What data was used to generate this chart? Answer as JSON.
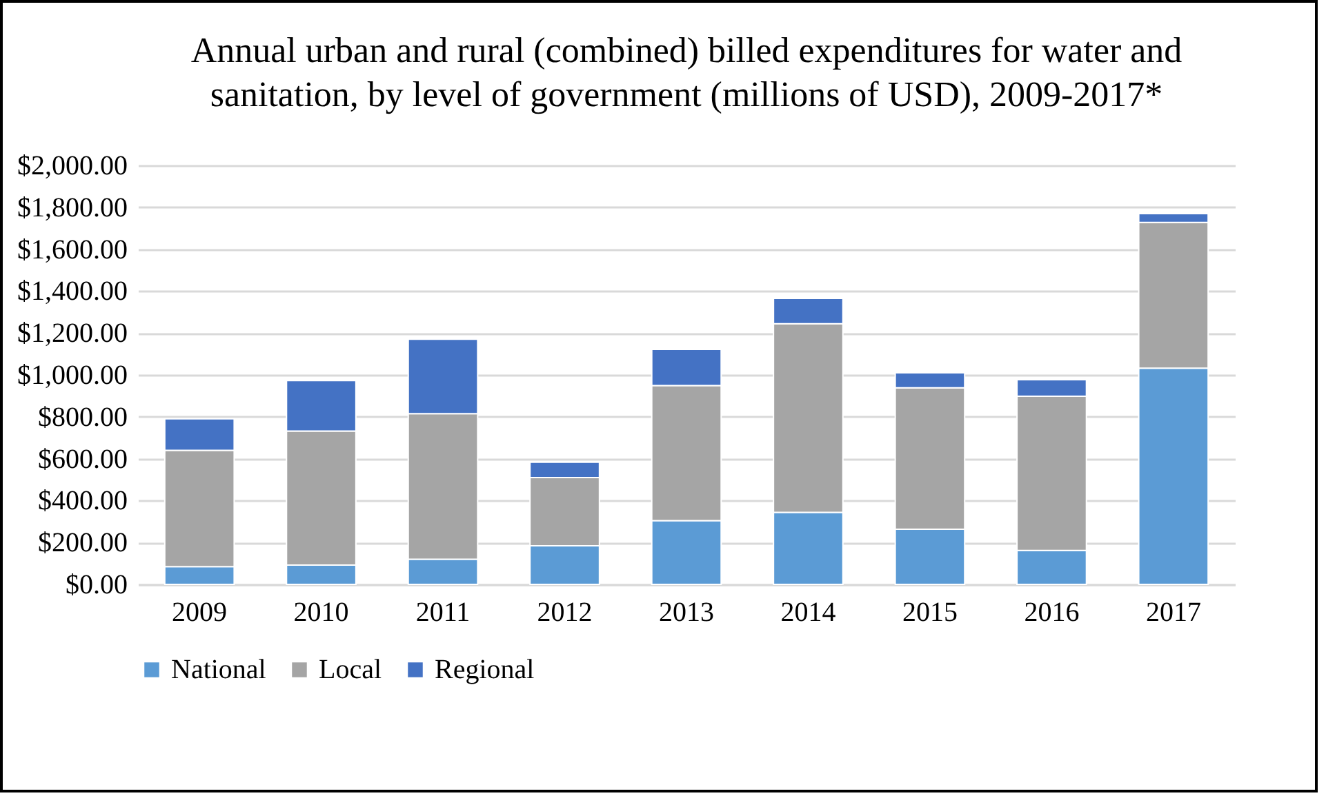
{
  "chart_data": {
    "type": "bar",
    "stacked": true,
    "title": "Annual urban and rural (combined) billed expenditures for water and sanitation, by level of government (millions of USD), 2009-2017*",
    "categories": [
      "2009",
      "2010",
      "2011",
      "2012",
      "2013",
      "2014",
      "2015",
      "2016",
      "2017"
    ],
    "series": [
      {
        "name": "National",
        "color": "#5b9bd5",
        "values": [
          85,
          92,
          120,
          184,
          304,
          344,
          263,
          162,
          1032
        ]
      },
      {
        "name": "Local",
        "color": "#a5a5a5",
        "values": [
          555,
          640,
          695,
          326,
          645,
          900,
          675,
          736,
          696
        ]
      },
      {
        "name": "Regional",
        "color": "#4472c4",
        "values": [
          150,
          241,
          355,
          73,
          173,
          121,
          72,
          79,
          42
        ]
      }
    ],
    "ylim": [
      0,
      2000
    ],
    "yticks": [
      {
        "value": 0,
        "label": "$0.00"
      },
      {
        "value": 200,
        "label": "$200.00"
      },
      {
        "value": 400,
        "label": "$400.00"
      },
      {
        "value": 600,
        "label": "$600.00"
      },
      {
        "value": 800,
        "label": "$800.00"
      },
      {
        "value": 1000,
        "label": "$1,000.00"
      },
      {
        "value": 1200,
        "label": "$1,200.00"
      },
      {
        "value": 1400,
        "label": "$1,400.00"
      },
      {
        "value": 1600,
        "label": "$1,600.00"
      },
      {
        "value": 1800,
        "label": "$1,800.00"
      },
      {
        "value": 2000,
        "label": "$2,000.00"
      }
    ],
    "grid": "y",
    "legend": "bottom"
  }
}
